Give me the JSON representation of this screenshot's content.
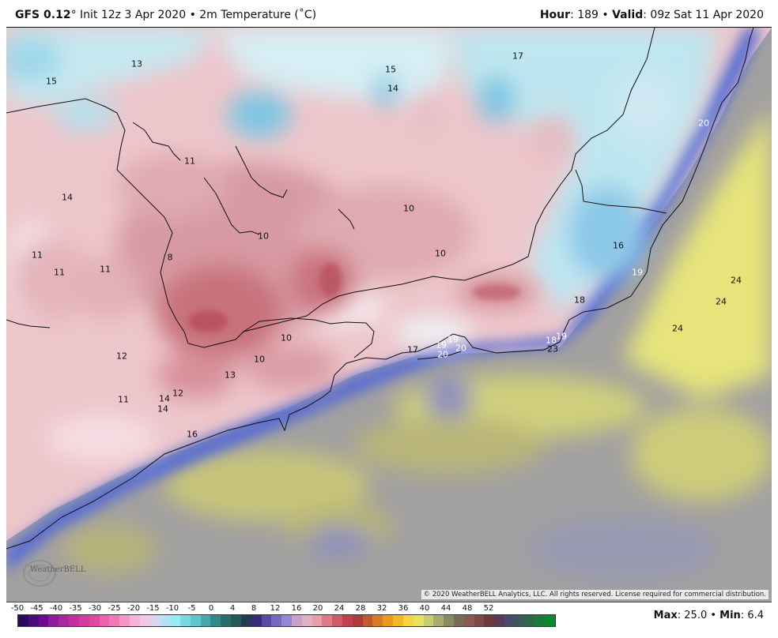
{
  "header": {
    "model": "GFS 0.12",
    "model_suffix": "°",
    "init": " Init 12z 3 Apr 2020 • 2m Temperature (˚C)",
    "hour_label": "Hour",
    "hour_value": ": 189 • ",
    "valid_label": "Valid",
    "valid_value": ": 09z Sat 11 Apr 2020"
  },
  "map": {
    "copyright": "© 2020 WeatherBELL Analytics, LLC. All rights reserved. License required for commercial distribution.",
    "logo_text": "WeatherBELL",
    "labels": [
      {
        "text": "13",
        "color": "#111"
      },
      {
        "text": "15",
        "color": "#111"
      },
      {
        "text": "15",
        "color": "#111"
      },
      {
        "text": "14",
        "color": "#111"
      },
      {
        "text": "17",
        "color": "#111"
      },
      {
        "text": "11",
        "color": "#111"
      },
      {
        "text": "14",
        "color": "#111"
      },
      {
        "text": "10",
        "color": "#111"
      },
      {
        "text": "10",
        "color": "#111"
      },
      {
        "text": "10",
        "color": "#111"
      },
      {
        "text": "11",
        "color": "#111"
      },
      {
        "text": "11",
        "color": "#111"
      },
      {
        "text": "11",
        "color": "#111"
      },
      {
        "text": "8",
        "color": "#111"
      },
      {
        "text": "16",
        "color": "#111"
      },
      {
        "text": "19",
        "color": "#ffffff"
      },
      {
        "text": "24",
        "color": "#111"
      },
      {
        "text": "24",
        "color": "#111"
      },
      {
        "text": "24",
        "color": "#111"
      },
      {
        "text": "18",
        "color": "#111"
      },
      {
        "text": "10",
        "color": "#111"
      },
      {
        "text": "10",
        "color": "#111"
      },
      {
        "text": "12",
        "color": "#111"
      },
      {
        "text": "13",
        "color": "#111"
      },
      {
        "text": "11",
        "color": "#111"
      },
      {
        "text": "14",
        "color": "#111"
      },
      {
        "text": "12",
        "color": "#111"
      },
      {
        "text": "14",
        "color": "#111"
      },
      {
        "text": "16",
        "color": "#111"
      },
      {
        "text": "17",
        "color": "#111"
      },
      {
        "text": "19",
        "color": "#ffffff"
      },
      {
        "text": "19",
        "color": "#ffffff"
      },
      {
        "text": "20",
        "color": "#ffffff"
      },
      {
        "text": "20",
        "color": "#ffffff"
      },
      {
        "text": "18",
        "color": "#ffffff"
      },
      {
        "text": "19",
        "color": "#ffffff"
      },
      {
        "text": "23",
        "color": "#111"
      },
      {
        "text": "20",
        "color": "#ffffff"
      }
    ]
  },
  "colorbar": {
    "ticks": [
      "-50",
      "-45",
      "-40",
      "-35",
      "-30",
      "-25",
      "-20",
      "-15",
      "-10",
      "-5",
      "0",
      "4",
      "8",
      "12",
      "16",
      "20",
      "24",
      "28",
      "32",
      "36",
      "40",
      "44",
      "48",
      "52"
    ],
    "colors": [
      "#2a0a5e",
      "#4a0a7a",
      "#6d0a8e",
      "#8e1a9c",
      "#a8269e",
      "#c0309e",
      "#d43c9c",
      "#e04a9e",
      "#ea62ac",
      "#f07ab8",
      "#f496c6",
      "#f8b4d6",
      "#f0c8e2",
      "#d8d6ee",
      "#b8e0f4",
      "#98e8f6",
      "#7ad8e6",
      "#5ec6d0",
      "#46a8ac",
      "#348a88",
      "#2a6e6a",
      "#245a56",
      "#243a4e",
      "#3a2a7a",
      "#5a48a8",
      "#7868c0",
      "#9688d0",
      "#c8a0c8",
      "#e0b0c0",
      "#e89ca8",
      "#e07a88",
      "#d05a6a",
      "#c04050",
      "#b03a3a",
      "#c05a30",
      "#d87a28",
      "#e89a20",
      "#f0b82a",
      "#f4d444",
      "#e8e060",
      "#c8cc70",
      "#a8ac6c",
      "#8a8a62",
      "#7a6a5a",
      "#8a5a52",
      "#7a4a48",
      "#6a3a3c",
      "#5a3a5a",
      "#4a4a6a",
      "#3a5a5a",
      "#2a6a4a",
      "#1a7a3a",
      "#0a8a2a"
    ]
  },
  "stats": {
    "max_label": "Max",
    "max_value": ": 25.0 • ",
    "min_label": "Min",
    "min_value": ": 6.4"
  }
}
